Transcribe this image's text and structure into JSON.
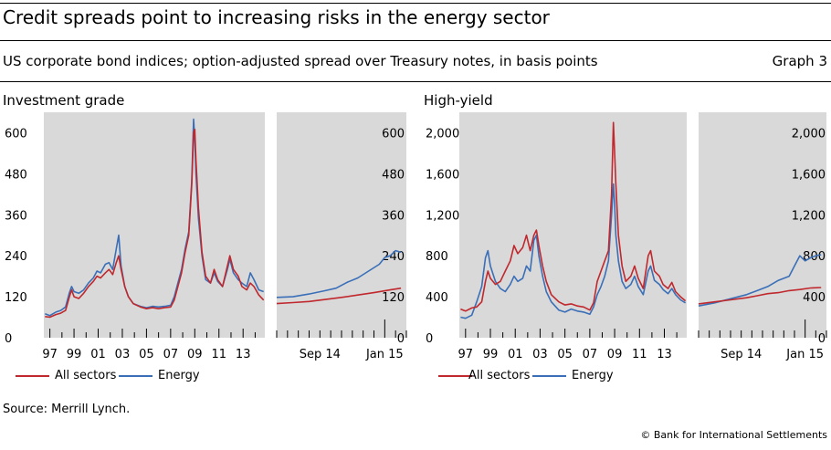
{
  "header": {
    "title": "Credit spreads point to increasing risks in the energy sector",
    "subtitle": "US corporate bond indices; option-adjusted spread over Treasury notes, in basis points",
    "graph_label": "Graph 3"
  },
  "footer": {
    "source": "Source: Merrill Lynch.",
    "copyright": "© Bank for International Settlements"
  },
  "colors": {
    "all_sectors": "#c0282d",
    "energy": "#3a6fb8",
    "panel_bg": "#d9d9d9"
  },
  "chart_data": [
    {
      "type": "line",
      "title": "Investment grade",
      "ylim": [
        0,
        660
      ],
      "yticks": [
        "0",
        "120",
        "240",
        "360",
        "480",
        "600"
      ],
      "series_names": [
        "All sectors",
        "Energy"
      ],
      "long_panel": {
        "xlim": [
          1996.5,
          2014.8
        ],
        "xticks": [
          "97",
          "99",
          "01",
          "03",
          "05",
          "07",
          "09",
          "11",
          "13"
        ],
        "xtick_values": [
          1997,
          1999,
          2001,
          2003,
          2005,
          2007,
          2009,
          2011,
          2013
        ],
        "all_sectors": [
          [
            1996.6,
            62
          ],
          [
            1997.0,
            60
          ],
          [
            1997.5,
            68
          ],
          [
            1997.9,
            72
          ],
          [
            1998.3,
            80
          ],
          [
            1998.6,
            118
          ],
          [
            1998.8,
            140
          ],
          [
            1999.0,
            120
          ],
          [
            1999.4,
            115
          ],
          [
            1999.8,
            130
          ],
          [
            2000.2,
            150
          ],
          [
            2000.6,
            165
          ],
          [
            2000.9,
            180
          ],
          [
            2001.2,
            175
          ],
          [
            2001.6,
            190
          ],
          [
            2001.9,
            200
          ],
          [
            2002.2,
            185
          ],
          [
            2002.5,
            220
          ],
          [
            2002.7,
            240
          ],
          [
            2002.9,
            200
          ],
          [
            2003.2,
            150
          ],
          [
            2003.5,
            120
          ],
          [
            2003.9,
            100
          ],
          [
            2004.5,
            90
          ],
          [
            2005.0,
            85
          ],
          [
            2005.5,
            88
          ],
          [
            2006.0,
            85
          ],
          [
            2006.5,
            88
          ],
          [
            2007.0,
            90
          ],
          [
            2007.3,
            110
          ],
          [
            2007.6,
            150
          ],
          [
            2007.9,
            190
          ],
          [
            2008.2,
            250
          ],
          [
            2008.5,
            300
          ],
          [
            2008.75,
            450
          ],
          [
            2008.9,
            600
          ],
          [
            2009.0,
            610
          ],
          [
            2009.1,
            520
          ],
          [
            2009.3,
            380
          ],
          [
            2009.6,
            250
          ],
          [
            2009.9,
            180
          ],
          [
            2010.3,
            160
          ],
          [
            2010.6,
            200
          ],
          [
            2010.9,
            170
          ],
          [
            2011.3,
            150
          ],
          [
            2011.7,
            210
          ],
          [
            2011.9,
            240
          ],
          [
            2012.2,
            200
          ],
          [
            2012.6,
            180
          ],
          [
            2012.9,
            150
          ],
          [
            2013.3,
            140
          ],
          [
            2013.6,
            160
          ],
          [
            2013.9,
            150
          ],
          [
            2014.3,
            125
          ],
          [
            2014.7,
            110
          ]
        ],
        "energy": [
          [
            1996.6,
            70
          ],
          [
            1997.0,
            65
          ],
          [
            1997.5,
            75
          ],
          [
            1997.9,
            80
          ],
          [
            1998.3,
            90
          ],
          [
            1998.6,
            130
          ],
          [
            1998.8,
            150
          ],
          [
            1999.0,
            135
          ],
          [
            1999.4,
            130
          ],
          [
            1999.8,
            140
          ],
          [
            2000.2,
            160
          ],
          [
            2000.6,
            175
          ],
          [
            2000.9,
            195
          ],
          [
            2001.2,
            190
          ],
          [
            2001.6,
            215
          ],
          [
            2001.9,
            220
          ],
          [
            2002.2,
            200
          ],
          [
            2002.5,
            260
          ],
          [
            2002.7,
            300
          ],
          [
            2002.9,
            210
          ],
          [
            2003.2,
            150
          ],
          [
            2003.5,
            120
          ],
          [
            2003.9,
            100
          ],
          [
            2004.5,
            92
          ],
          [
            2005.0,
            88
          ],
          [
            2005.5,
            92
          ],
          [
            2006.0,
            90
          ],
          [
            2006.5,
            92
          ],
          [
            2007.0,
            95
          ],
          [
            2007.3,
            120
          ],
          [
            2007.6,
            160
          ],
          [
            2007.9,
            200
          ],
          [
            2008.2,
            260
          ],
          [
            2008.5,
            310
          ],
          [
            2008.75,
            460
          ],
          [
            2008.9,
            640
          ],
          [
            2009.0,
            580
          ],
          [
            2009.1,
            480
          ],
          [
            2009.3,
            350
          ],
          [
            2009.6,
            240
          ],
          [
            2009.9,
            170
          ],
          [
            2010.3,
            160
          ],
          [
            2010.6,
            190
          ],
          [
            2010.9,
            165
          ],
          [
            2011.3,
            150
          ],
          [
            2011.7,
            200
          ],
          [
            2011.9,
            230
          ],
          [
            2012.2,
            190
          ],
          [
            2012.6,
            170
          ],
          [
            2012.9,
            160
          ],
          [
            2013.3,
            150
          ],
          [
            2013.6,
            190
          ],
          [
            2013.9,
            170
          ],
          [
            2014.3,
            140
          ],
          [
            2014.7,
            135
          ]
        ]
      },
      "short_panel": {
        "xlim": [
          0,
          24
        ],
        "xticks": [
          "Sep 14",
          "Jan 15"
        ],
        "xtick_values": [
          8,
          20
        ],
        "all_sectors": [
          [
            0,
            100
          ],
          [
            3,
            103
          ],
          [
            6,
            106
          ],
          [
            9,
            112
          ],
          [
            12,
            118
          ],
          [
            15,
            125
          ],
          [
            18,
            132
          ],
          [
            21,
            140
          ],
          [
            23,
            145
          ]
        ],
        "energy": [
          [
            0,
            118
          ],
          [
            3,
            120
          ],
          [
            6,
            128
          ],
          [
            9,
            138
          ],
          [
            11,
            145
          ],
          [
            13,
            162
          ],
          [
            15,
            175
          ],
          [
            17,
            195
          ],
          [
            19,
            215
          ],
          [
            20,
            235
          ],
          [
            21,
            240
          ],
          [
            22,
            255
          ],
          [
            23,
            250
          ]
        ]
      }
    },
    {
      "type": "line",
      "title": "High-yield",
      "ylim": [
        0,
        2200
      ],
      "yticks": [
        "0",
        "400",
        "800",
        "1,200",
        "1,600",
        "2,000"
      ],
      "series_names": [
        "All sectors",
        "Energy"
      ],
      "long_panel": {
        "xlim": [
          1996.5,
          2014.8
        ],
        "xticks": [
          "97",
          "99",
          "01",
          "03",
          "05",
          "07",
          "09",
          "11",
          "13"
        ],
        "xtick_values": [
          1997,
          1999,
          2001,
          2003,
          2005,
          2007,
          2009,
          2011,
          2013
        ],
        "all_sectors": [
          [
            1996.6,
            280
          ],
          [
            1997.0,
            260
          ],
          [
            1997.5,
            290
          ],
          [
            1997.9,
            300
          ],
          [
            1998.3,
            350
          ],
          [
            1998.6,
            550
          ],
          [
            1998.8,
            650
          ],
          [
            1999.0,
            580
          ],
          [
            1999.4,
            520
          ],
          [
            1999.8,
            550
          ],
          [
            2000.2,
            650
          ],
          [
            2000.6,
            750
          ],
          [
            2000.9,
            900
          ],
          [
            2001.2,
            820
          ],
          [
            2001.6,
            880
          ],
          [
            2001.9,
            1000
          ],
          [
            2002.2,
            850
          ],
          [
            2002.5,
            1000
          ],
          [
            2002.7,
            1050
          ],
          [
            2002.9,
            900
          ],
          [
            2003.2,
            700
          ],
          [
            2003.5,
            550
          ],
          [
            2003.9,
            420
          ],
          [
            2004.5,
            350
          ],
          [
            2005.0,
            320
          ],
          [
            2005.5,
            330
          ],
          [
            2006.0,
            310
          ],
          [
            2006.5,
            300
          ],
          [
            2007.0,
            270
          ],
          [
            2007.3,
            340
          ],
          [
            2007.6,
            550
          ],
          [
            2007.9,
            650
          ],
          [
            2008.2,
            750
          ],
          [
            2008.5,
            850
          ],
          [
            2008.75,
            1400
          ],
          [
            2008.9,
            2100
          ],
          [
            2009.0,
            1800
          ],
          [
            2009.1,
            1500
          ],
          [
            2009.3,
            1000
          ],
          [
            2009.6,
            700
          ],
          [
            2009.9,
            550
          ],
          [
            2010.3,
            600
          ],
          [
            2010.6,
            700
          ],
          [
            2010.9,
            580
          ],
          [
            2011.3,
            480
          ],
          [
            2011.7,
            800
          ],
          [
            2011.9,
            850
          ],
          [
            2012.2,
            650
          ],
          [
            2012.6,
            600
          ],
          [
            2012.9,
            520
          ],
          [
            2013.3,
            480
          ],
          [
            2013.6,
            540
          ],
          [
            2013.9,
            450
          ],
          [
            2014.3,
            400
          ],
          [
            2014.7,
            360
          ]
        ],
        "energy": [
          [
            1996.6,
            200
          ],
          [
            1997.0,
            190
          ],
          [
            1997.5,
            220
          ],
          [
            1997.9,
            350
          ],
          [
            1998.3,
            500
          ],
          [
            1998.6,
            780
          ],
          [
            1998.8,
            850
          ],
          [
            1999.0,
            700
          ],
          [
            1999.4,
            550
          ],
          [
            1999.8,
            480
          ],
          [
            2000.2,
            450
          ],
          [
            2000.6,
            520
          ],
          [
            2000.9,
            600
          ],
          [
            2001.2,
            550
          ],
          [
            2001.6,
            580
          ],
          [
            2001.9,
            700
          ],
          [
            2002.2,
            650
          ],
          [
            2002.5,
            950
          ],
          [
            2002.7,
            1000
          ],
          [
            2002.9,
            800
          ],
          [
            2003.2,
            600
          ],
          [
            2003.5,
            450
          ],
          [
            2003.9,
            350
          ],
          [
            2004.5,
            270
          ],
          [
            2005.0,
            250
          ],
          [
            2005.5,
            280
          ],
          [
            2006.0,
            260
          ],
          [
            2006.5,
            250
          ],
          [
            2007.0,
            230
          ],
          [
            2007.3,
            300
          ],
          [
            2007.6,
            420
          ],
          [
            2007.9,
            500
          ],
          [
            2008.2,
            600
          ],
          [
            2008.5,
            750
          ],
          [
            2008.75,
            1200
          ],
          [
            2008.9,
            1500
          ],
          [
            2009.0,
            1300
          ],
          [
            2009.1,
            1000
          ],
          [
            2009.3,
            750
          ],
          [
            2009.6,
            550
          ],
          [
            2009.9,
            480
          ],
          [
            2010.3,
            520
          ],
          [
            2010.6,
            600
          ],
          [
            2010.9,
            500
          ],
          [
            2011.3,
            420
          ],
          [
            2011.7,
            650
          ],
          [
            2011.9,
            700
          ],
          [
            2012.2,
            560
          ],
          [
            2012.6,
            520
          ],
          [
            2012.9,
            470
          ],
          [
            2013.3,
            430
          ],
          [
            2013.6,
            480
          ],
          [
            2013.9,
            420
          ],
          [
            2014.3,
            370
          ],
          [
            2014.7,
            340
          ]
        ]
      },
      "short_panel": {
        "xlim": [
          0,
          24
        ],
        "xticks": [
          "Sep 14",
          "Jan 15"
        ],
        "xtick_values": [
          8,
          20
        ],
        "all_sectors": [
          [
            0,
            330
          ],
          [
            3,
            350
          ],
          [
            6,
            370
          ],
          [
            9,
            390
          ],
          [
            11,
            410
          ],
          [
            13,
            430
          ],
          [
            15,
            440
          ],
          [
            17,
            460
          ],
          [
            19,
            470
          ],
          [
            21,
            485
          ],
          [
            23,
            490
          ]
        ],
        "energy": [
          [
            0,
            310
          ],
          [
            3,
            340
          ],
          [
            6,
            380
          ],
          [
            9,
            420
          ],
          [
            11,
            460
          ],
          [
            13,
            500
          ],
          [
            15,
            560
          ],
          [
            17,
            600
          ],
          [
            18,
            700
          ],
          [
            19,
            800
          ],
          [
            20,
            750
          ],
          [
            21,
            780
          ],
          [
            22,
            800
          ],
          [
            23,
            810
          ]
        ]
      }
    }
  ],
  "legend": {
    "all_sectors": "All sectors",
    "energy": "Energy"
  }
}
